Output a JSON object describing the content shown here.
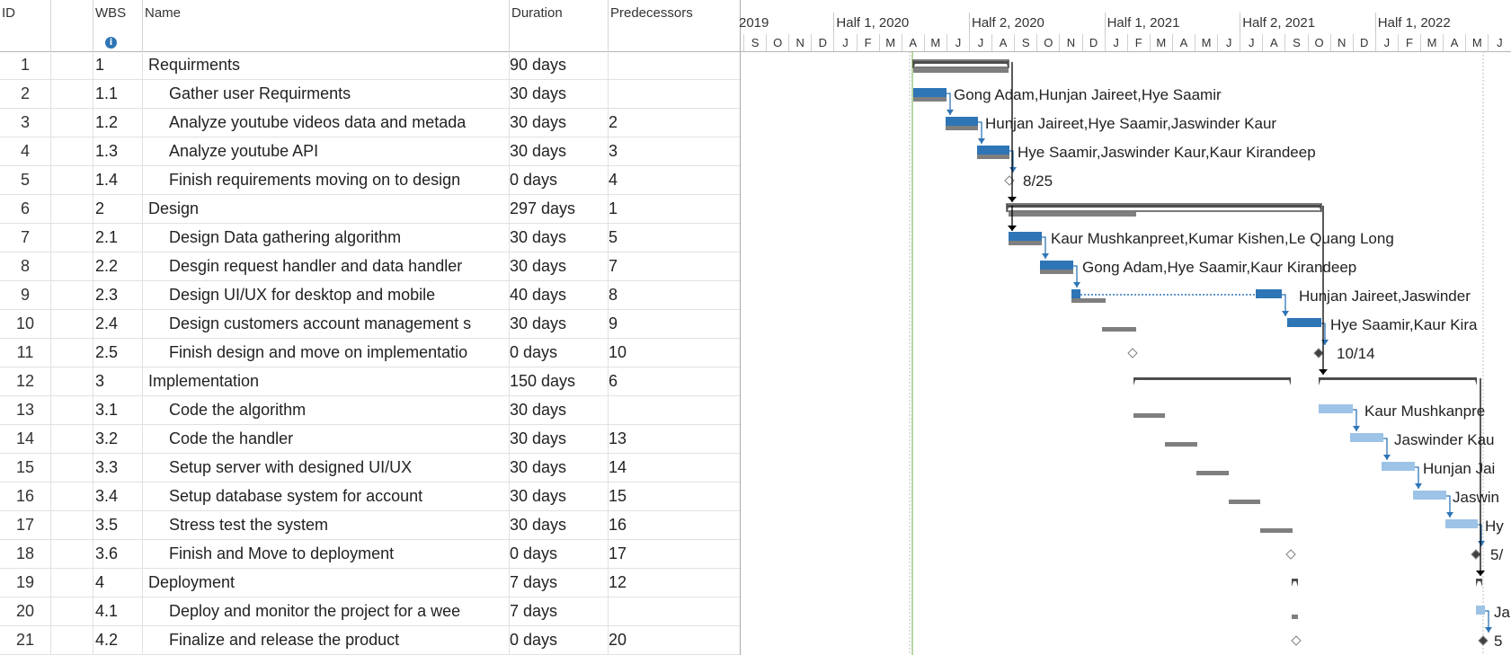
{
  "columns": {
    "id": "ID",
    "indicators": "i",
    "wbs": "WBS",
    "name": "Name",
    "duration": "Duration",
    "predecessors": "Predecessors"
  },
  "timescale": {
    "halves": [
      {
        "label": "2019",
        "month_index": 0
      },
      {
        "label": "Half 1, 2020",
        "month_index": 4
      },
      {
        "label": "Half 2, 2020",
        "month_index": 10
      },
      {
        "label": "Half 1, 2021",
        "month_index": 16
      },
      {
        "label": "Half 2, 2021",
        "month_index": 22
      },
      {
        "label": "Half 1, 2022",
        "month_index": 28
      }
    ],
    "months": [
      "S",
      "O",
      "N",
      "D",
      "J",
      "F",
      "M",
      "A",
      "M",
      "J",
      "J",
      "A",
      "S",
      "O",
      "N",
      "D",
      "J",
      "F",
      "M",
      "A",
      "M",
      "J",
      "J",
      "A",
      "S",
      "O",
      "N",
      "D",
      "J",
      "F",
      "M",
      "A",
      "M",
      "J"
    ]
  },
  "tasks": [
    {
      "id": "1",
      "wbs": "1",
      "name": "Requirments",
      "duration": "90 days",
      "pred": "",
      "summary": true
    },
    {
      "id": "2",
      "wbs": "1.1",
      "name": "Gather user Requirments",
      "duration": "30 days",
      "pred": ""
    },
    {
      "id": "3",
      "wbs": "1.2",
      "name": "Analyze youtube videos data and metada",
      "duration": "30 days",
      "pred": "2"
    },
    {
      "id": "4",
      "wbs": "1.3",
      "name": "Analyze youtube API",
      "duration": "30 days",
      "pred": "3"
    },
    {
      "id": "5",
      "wbs": "1.4",
      "name": "Finish requirements moving on to design",
      "duration": "0 days",
      "pred": "4"
    },
    {
      "id": "6",
      "wbs": "2",
      "name": "Design",
      "duration": "297 days",
      "pred": "1",
      "summary": true
    },
    {
      "id": "7",
      "wbs": "2.1",
      "name": "Design Data gathering algorithm",
      "duration": "30 days",
      "pred": "5"
    },
    {
      "id": "8",
      "wbs": "2.2",
      "name": "Desgin request handler and data handler",
      "duration": "30 days",
      "pred": "7"
    },
    {
      "id": "9",
      "wbs": "2.3",
      "name": "Design UI/UX for desktop and mobile",
      "duration": "40 days",
      "pred": "8",
      "calendar_icon": true
    },
    {
      "id": "10",
      "wbs": "2.4",
      "name": "Design customers account management s",
      "duration": "30 days",
      "pred": "9"
    },
    {
      "id": "11",
      "wbs": "2.5",
      "name": "Finish design and move on implementatio",
      "duration": "0 days",
      "pred": "10"
    },
    {
      "id": "12",
      "wbs": "3",
      "name": "Implementation",
      "duration": "150 days",
      "pred": "6",
      "summary": true
    },
    {
      "id": "13",
      "wbs": "3.1",
      "name": "Code the algorithm",
      "duration": "30 days",
      "pred": ""
    },
    {
      "id": "14",
      "wbs": "3.2",
      "name": "Code the handler",
      "duration": "30 days",
      "pred": "13"
    },
    {
      "id": "15",
      "wbs": "3.3",
      "name": "Setup server with designed UI/UX",
      "duration": "30 days",
      "pred": "14"
    },
    {
      "id": "16",
      "wbs": "3.4",
      "name": "Setup database system for account",
      "duration": "30 days",
      "pred": "15"
    },
    {
      "id": "17",
      "wbs": "3.5",
      "name": "Stress test the system",
      "duration": "30 days",
      "pred": "16"
    },
    {
      "id": "18",
      "wbs": "3.6",
      "name": "Finish and Move to deployment",
      "duration": "0 days",
      "pred": "17"
    },
    {
      "id": "19",
      "wbs": "4",
      "name": "Deployment",
      "duration": "7 days",
      "pred": "12",
      "summary": true
    },
    {
      "id": "20",
      "wbs": "4.1",
      "name": "Deploy and monitor the project for a wee",
      "duration": "7 days",
      "pred": ""
    },
    {
      "id": "21",
      "wbs": "4.2",
      "name": "Finalize and release the product",
      "duration": "0 days",
      "pred": "20"
    }
  ],
  "chart_labels": [
    {
      "row": 2,
      "text": "Gong Adam,Hunjan Jaireet,Hye Saamir"
    },
    {
      "row": 3,
      "text": "Hunjan Jaireet,Hye Saamir,Jaswinder Kaur"
    },
    {
      "row": 4,
      "text": "Hye Saamir,Jaswinder Kaur,Kaur Kirandeep"
    },
    {
      "row": 5,
      "text": "8/25"
    },
    {
      "row": 7,
      "text": "Kaur Mushkanpreet,Kumar Kishen,Le Quang Long"
    },
    {
      "row": 8,
      "text": "Gong Adam,Hye Saamir,Kaur Kirandeep"
    },
    {
      "row": 9,
      "text": "Hunjan Jaireet,Jaswinder"
    },
    {
      "row": 10,
      "text": "Hye Saamir,Kaur Kira"
    },
    {
      "row": 11,
      "text": "10/14"
    },
    {
      "row": 13,
      "text": "Kaur Mushkanpre"
    },
    {
      "row": 14,
      "text": "Jaswinder Kau"
    },
    {
      "row": 15,
      "text": "Hunjan Jai"
    },
    {
      "row": 16,
      "text": "Jaswin"
    },
    {
      "row": 17,
      "text": "Hy"
    },
    {
      "row": 18,
      "text": "5/"
    },
    {
      "row": 20,
      "text": "Ja"
    },
    {
      "row": 21,
      "text": "5"
    }
  ],
  "colors": {
    "task_bar": "#2e75b6",
    "task_bar_light": "#9dc3e6",
    "baseline": "#7f7f7f",
    "summary": "#4d4d4d",
    "status_line": "#70ad47",
    "link": "#2e75b6"
  }
}
